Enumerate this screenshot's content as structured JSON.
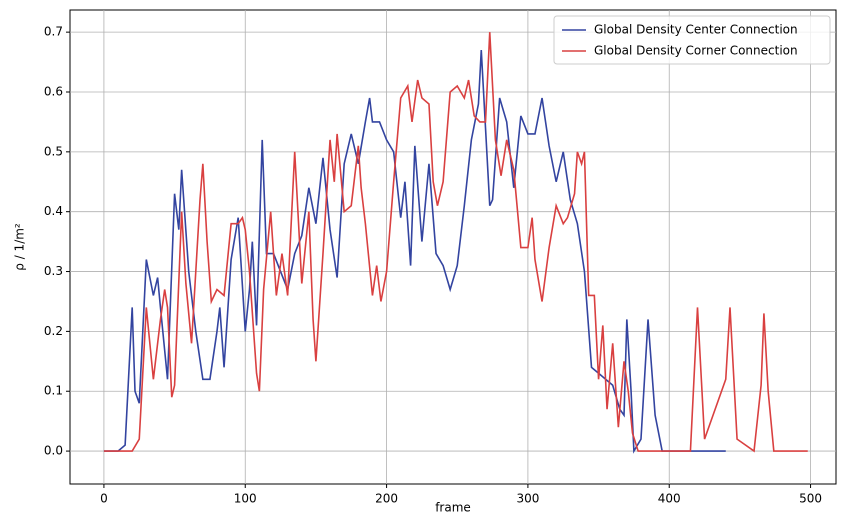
{
  "chart_data": {
    "type": "line",
    "xlabel": "frame",
    "ylabel": "ρ / 1/m²",
    "xlim": [
      -24,
      518
    ],
    "ylim": [
      -0.055,
      0.737
    ],
    "xticks": [
      0,
      100,
      200,
      300,
      400,
      500
    ],
    "yticks": [
      {
        "value": 0,
        "label": "0.0"
      },
      0.1,
      0.2,
      0.3,
      0.4,
      0.5,
      0.6,
      0.7
    ],
    "grid": true,
    "legend": "upper right",
    "series": [
      {
        "name": "Global Density Center Connection",
        "color": "#3344a0",
        "x": [
          0,
          5,
          10,
          15,
          20,
          22,
          25,
          30,
          35,
          38,
          40,
          45,
          50,
          53,
          55,
          60,
          65,
          70,
          75,
          80,
          82,
          85,
          90,
          95,
          100,
          103,
          105,
          108,
          112,
          115,
          120,
          125,
          130,
          135,
          140,
          145,
          150,
          155,
          160,
          165,
          170,
          175,
          180,
          185,
          188,
          190,
          195,
          200,
          205,
          210,
          213,
          217,
          220,
          225,
          230,
          235,
          240,
          245,
          250,
          255,
          260,
          265,
          267,
          270,
          273,
          275,
          280,
          285,
          290,
          295,
          300,
          305,
          310,
          315,
          320,
          325,
          330,
          335,
          340,
          345,
          350,
          355,
          360,
          365,
          368,
          370,
          373,
          375,
          380,
          385,
          390,
          395,
          400,
          420,
          440
        ],
        "values": [
          0,
          0,
          0,
          0.01,
          0.24,
          0.1,
          0.08,
          0.32,
          0.26,
          0.29,
          0.24,
          0.12,
          0.43,
          0.37,
          0.47,
          0.3,
          0.2,
          0.12,
          0.12,
          0.2,
          0.24,
          0.14,
          0.32,
          0.39,
          0.2,
          0.27,
          0.35,
          0.21,
          0.52,
          0.33,
          0.33,
          0.3,
          0.27,
          0.33,
          0.36,
          0.44,
          0.38,
          0.49,
          0.37,
          0.29,
          0.48,
          0.53,
          0.48,
          0.55,
          0.59,
          0.55,
          0.55,
          0.52,
          0.5,
          0.39,
          0.45,
          0.31,
          0.51,
          0.35,
          0.48,
          0.33,
          0.31,
          0.27,
          0.31,
          0.41,
          0.52,
          0.58,
          0.67,
          0.54,
          0.41,
          0.42,
          0.59,
          0.55,
          0.44,
          0.56,
          0.53,
          0.53,
          0.59,
          0.51,
          0.45,
          0.5,
          0.42,
          0.38,
          0.3,
          0.14,
          0.13,
          0.12,
          0.11,
          0.07,
          0.06,
          0.22,
          0.1,
          0,
          0.02,
          0.22,
          0.06,
          0,
          0,
          0,
          0
        ]
      },
      {
        "name": "Global Density Corner Connection",
        "color": "#d94040",
        "x": [
          0,
          10,
          20,
          25,
          30,
          35,
          40,
          43,
          45,
          48,
          50,
          55,
          58,
          62,
          68,
          70,
          73,
          76,
          80,
          85,
          90,
          95,
          98,
          100,
          103,
          108,
          110,
          113,
          118,
          122,
          126,
          130,
          135,
          140,
          145,
          148,
          150,
          155,
          160,
          163,
          165,
          170,
          175,
          180,
          182,
          185,
          190,
          193,
          196,
          200,
          205,
          210,
          215,
          218,
          222,
          225,
          230,
          233,
          236,
          240,
          245,
          250,
          255,
          258,
          262,
          266,
          270,
          273,
          277,
          281,
          285,
          290,
          295,
          300,
          303,
          305,
          310,
          315,
          320,
          325,
          328,
          333,
          335,
          338,
          340,
          343,
          347,
          350,
          353,
          356,
          360,
          364,
          368,
          371,
          374,
          378,
          400,
          415,
          420,
          425,
          440,
          443,
          448,
          460,
          465,
          467,
          470,
          474,
          498
        ],
        "values": [
          0,
          0,
          0,
          0.02,
          0.24,
          0.12,
          0.22,
          0.27,
          0.24,
          0.09,
          0.11,
          0.4,
          0.28,
          0.18,
          0.42,
          0.48,
          0.35,
          0.25,
          0.27,
          0.26,
          0.38,
          0.38,
          0.39,
          0.37,
          0.3,
          0.13,
          0.1,
          0.27,
          0.4,
          0.26,
          0.33,
          0.26,
          0.5,
          0.28,
          0.4,
          0.22,
          0.15,
          0.33,
          0.52,
          0.45,
          0.53,
          0.4,
          0.41,
          0.51,
          0.44,
          0.38,
          0.26,
          0.31,
          0.25,
          0.3,
          0.45,
          0.59,
          0.61,
          0.55,
          0.62,
          0.59,
          0.58,
          0.45,
          0.41,
          0.45,
          0.6,
          0.61,
          0.59,
          0.62,
          0.56,
          0.55,
          0.55,
          0.7,
          0.52,
          0.46,
          0.52,
          0.47,
          0.34,
          0.34,
          0.39,
          0.32,
          0.25,
          0.34,
          0.41,
          0.38,
          0.39,
          0.43,
          0.5,
          0.48,
          0.5,
          0.26,
          0.26,
          0.12,
          0.21,
          0.07,
          0.18,
          0.04,
          0.15,
          0.1,
          0.03,
          0,
          0,
          0,
          0.24,
          0.02,
          0.12,
          0.24,
          0.02,
          0,
          0.11,
          0.23,
          0.1,
          0,
          0
        ]
      }
    ]
  }
}
